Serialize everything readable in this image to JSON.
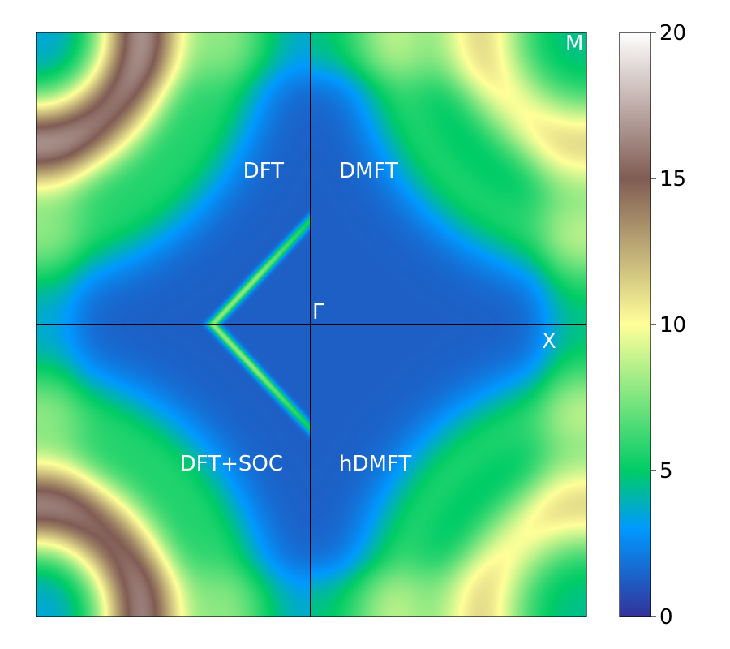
{
  "chart_data": {
    "type": "heatmap",
    "title": "",
    "xlabel": "",
    "ylabel": "",
    "quadrant_labels": [
      {
        "id": "tl",
        "text": "DFT"
      },
      {
        "id": "tr",
        "text": "DMFT"
      },
      {
        "id": "bl",
        "text": "DFT+SOC"
      },
      {
        "id": "br",
        "text": "hDMFT"
      }
    ],
    "k_point_labels": [
      {
        "id": "gamma",
        "text": "Γ"
      },
      {
        "id": "x",
        "text": "X"
      },
      {
        "id": "m",
        "text": "M"
      }
    ],
    "colorbar": {
      "range": [
        0,
        20
      ],
      "ticks": [
        0,
        5,
        10,
        15,
        20
      ],
      "tick_labels": [
        "0",
        "5",
        "10",
        "15",
        "20"
      ],
      "colormap": "terrain_r",
      "stops": [
        {
          "value": 0,
          "color": "#333399"
        },
        {
          "value": 3,
          "color": "#0099ff"
        },
        {
          "value": 5,
          "color": "#00cc66"
        },
        {
          "value": 10,
          "color": "#ffff99"
        },
        {
          "value": 15,
          "color": "#805c54"
        },
        {
          "value": 20,
          "color": "#ffffff"
        }
      ]
    },
    "divider_color": "#000000",
    "label_color": "#ffffff"
  }
}
